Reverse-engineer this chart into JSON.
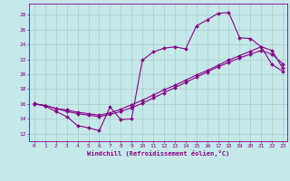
{
  "xlabel": "Windchill (Refroidissement éolien,°C)",
  "xlim_min": -0.5,
  "xlim_max": 23.4,
  "ylim_min": 11.0,
  "ylim_max": 29.5,
  "yticks": [
    12,
    14,
    16,
    18,
    20,
    22,
    24,
    26,
    28
  ],
  "xticks": [
    0,
    1,
    2,
    3,
    4,
    5,
    6,
    7,
    8,
    9,
    10,
    11,
    12,
    13,
    14,
    15,
    16,
    17,
    18,
    19,
    20,
    21,
    22,
    23
  ],
  "background_color": "#c5e8e8",
  "line_color": "#880088",
  "grid_color": "#aacccc",
  "line1_x": [
    0,
    1,
    2,
    3,
    4,
    5,
    6,
    7,
    8,
    9,
    10,
    11,
    12,
    13,
    14,
    15,
    16,
    17,
    18,
    19,
    20,
    21,
    22,
    23
  ],
  "line1_y": [
    16.1,
    15.7,
    15.0,
    14.3,
    13.1,
    12.8,
    12.4,
    15.6,
    13.9,
    14.0,
    21.9,
    23.0,
    23.5,
    23.7,
    23.4,
    26.5,
    27.3,
    28.2,
    28.3,
    24.9,
    24.8,
    23.7,
    21.3,
    20.4
  ],
  "line2_x": [
    0,
    1,
    2,
    3,
    4,
    5,
    6,
    7,
    8,
    9,
    10,
    11,
    12,
    13,
    14,
    15,
    16,
    17,
    18,
    19,
    20,
    21,
    22,
    23
  ],
  "line2_y": [
    16.0,
    15.8,
    15.4,
    15.0,
    14.7,
    14.5,
    14.3,
    14.6,
    15.0,
    15.5,
    16.1,
    16.8,
    17.5,
    18.2,
    18.9,
    19.6,
    20.3,
    21.0,
    21.6,
    22.2,
    22.7,
    23.2,
    22.7,
    21.4
  ],
  "line3_x": [
    0,
    1,
    2,
    3,
    4,
    5,
    6,
    7,
    8,
    9,
    10,
    11,
    12,
    13,
    14,
    15,
    16,
    17,
    18,
    19,
    20,
    21,
    22,
    23
  ],
  "line3_y": [
    16.0,
    15.8,
    15.4,
    15.2,
    14.9,
    14.7,
    14.5,
    14.8,
    15.3,
    15.9,
    16.5,
    17.2,
    17.9,
    18.5,
    19.2,
    19.9,
    20.5,
    21.2,
    21.9,
    22.5,
    23.1,
    23.7,
    23.2,
    20.8
  ]
}
